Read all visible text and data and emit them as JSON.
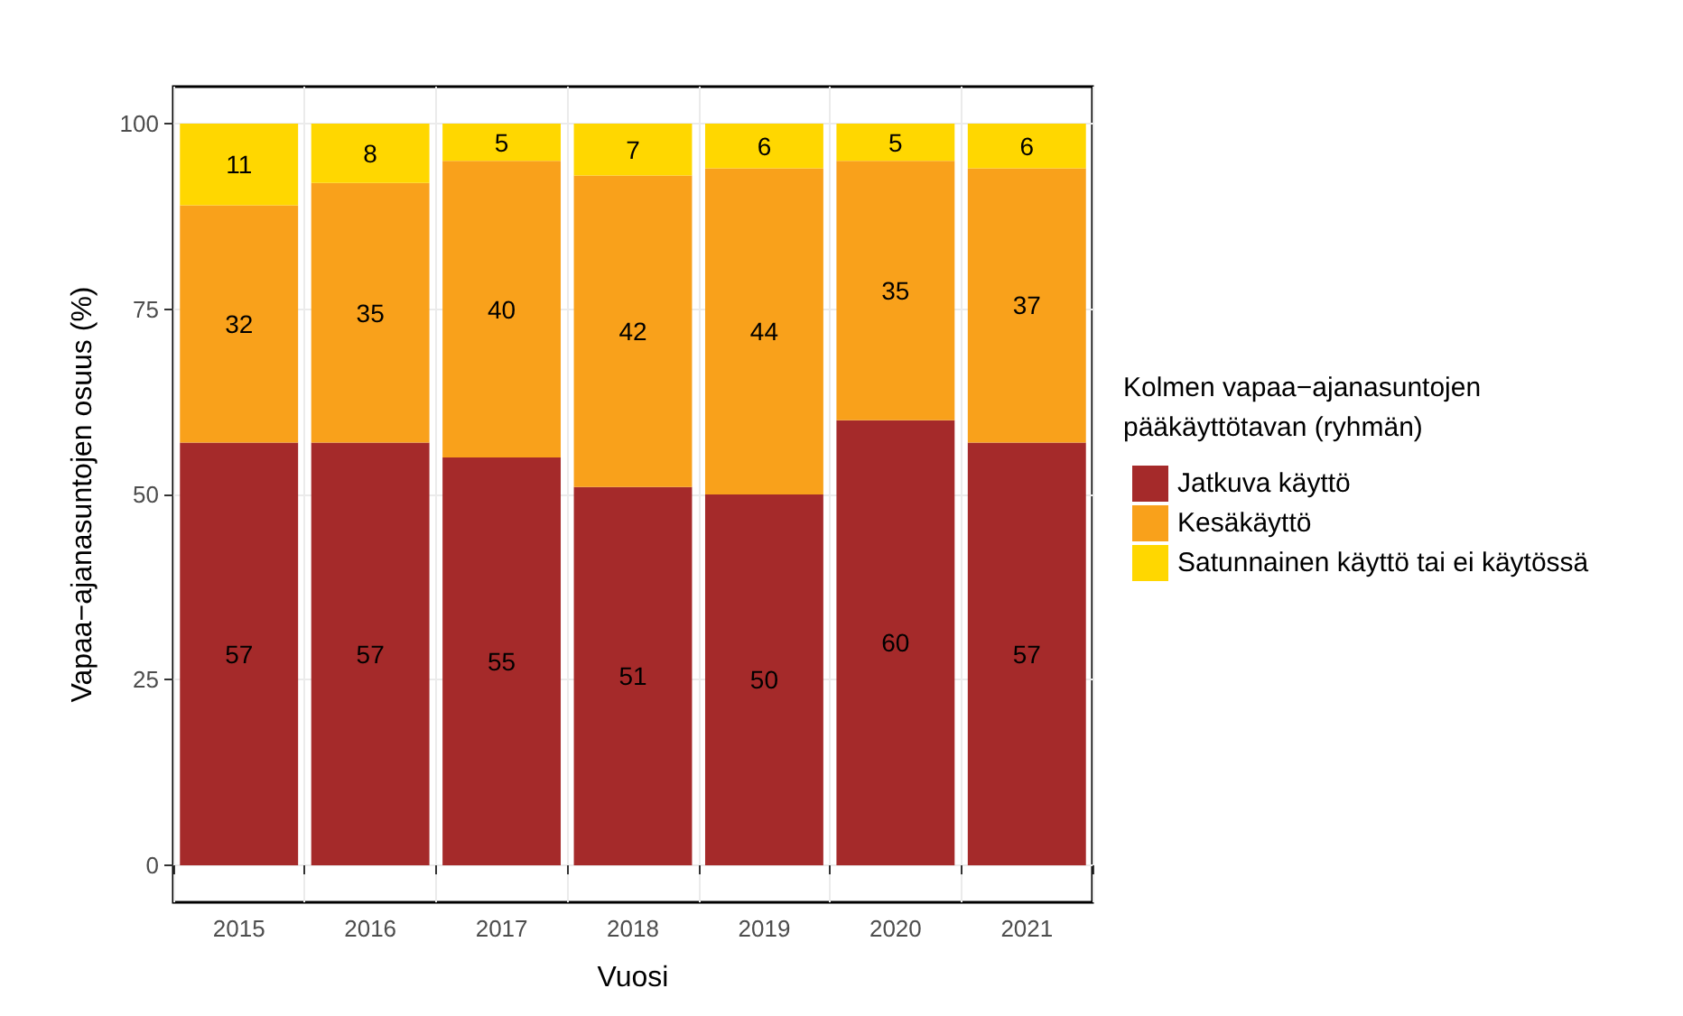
{
  "chart_data": {
    "type": "bar",
    "stacked": true,
    "xlabel": "Vuosi",
    "ylabel": "Vapaa−ajanasuntojen osuus (%)",
    "legend_title": "Kolmen vapaa−ajanasuntojen\npääkäyttötavan (ryhmän)",
    "legend": "right",
    "grid": true,
    "data_labels": true,
    "categories": [
      "2015",
      "2016",
      "2017",
      "2018",
      "2019",
      "2020",
      "2021"
    ],
    "ylim": [
      -5,
      105
    ],
    "yticks": [
      0,
      25,
      50,
      75,
      100
    ],
    "series": [
      {
        "name": "Jatkuva käyttö",
        "color": "#a52a2a",
        "values": [
          57,
          57,
          55,
          51,
          50,
          60,
          57
        ]
      },
      {
        "name": "Kesäkäyttö",
        "color": "#f9a11b",
        "values": [
          32,
          35,
          40,
          42,
          44,
          35,
          37
        ]
      },
      {
        "name": "Satunnainen käyttö tai ei käytössä",
        "color": "#ffd700",
        "values": [
          11,
          8,
          5,
          7,
          6,
          5,
          6
        ]
      }
    ]
  }
}
